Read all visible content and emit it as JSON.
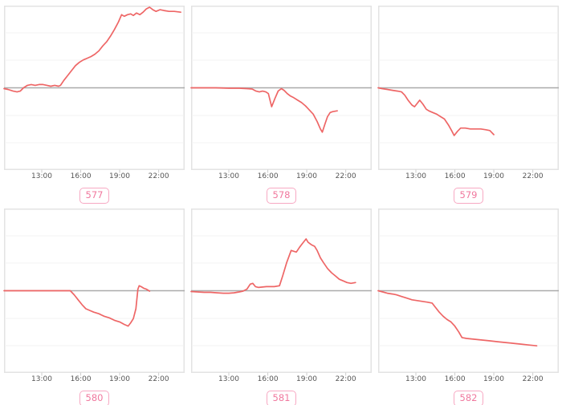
{
  "page": {
    "background": "#ffffff"
  },
  "colors": {
    "line": "#ee6666",
    "zero_line": "#aaaaaa",
    "gridline": "#f3f3f3",
    "panel_border": "#e3e3e3",
    "tick_text": "#555555",
    "badge_text": "#f0789e",
    "badge_border": "#f7a9c3"
  },
  "chart_data": {
    "type": "line",
    "layout": "small-multiples 2 rows x 3 columns",
    "legend": "none",
    "grid": "faint horizontal gridlines, gray zero baseline at mid-height",
    "x_axis": {
      "ticks": [
        "13:00",
        "16:00",
        "19:00",
        "22:00"
      ],
      "tick_hours": [
        13,
        16,
        19,
        22
      ],
      "domain_hours": [
        10.1,
        24.0
      ]
    },
    "y_axis": {
      "domain": [
        -100,
        100
      ],
      "zero_line": true,
      "tick_labels_visible": false,
      "note": "no y tick labels shown; values are relative to the zero baseline, 100 = panel top"
    },
    "charts": [
      {
        "badge": "577",
        "points": [
          [
            10.1,
            -1
          ],
          [
            10.4,
            -2
          ],
          [
            10.8,
            -4
          ],
          [
            11.1,
            -5
          ],
          [
            11.35,
            -4
          ],
          [
            11.6,
            0
          ],
          [
            11.9,
            3
          ],
          [
            12.2,
            4
          ],
          [
            12.5,
            3
          ],
          [
            12.8,
            4
          ],
          [
            13.1,
            4
          ],
          [
            13.4,
            3
          ],
          [
            13.7,
            2
          ],
          [
            14.0,
            3
          ],
          [
            14.3,
            2
          ],
          [
            14.45,
            3
          ],
          [
            14.7,
            9
          ],
          [
            15.0,
            15
          ],
          [
            15.3,
            21
          ],
          [
            15.6,
            27
          ],
          [
            15.9,
            31
          ],
          [
            16.2,
            34
          ],
          [
            16.5,
            36
          ],
          [
            16.8,
            38
          ],
          [
            17.1,
            41
          ],
          [
            17.4,
            45
          ],
          [
            17.7,
            51
          ],
          [
            18.0,
            56
          ],
          [
            18.3,
            63
          ],
          [
            18.6,
            71
          ],
          [
            18.9,
            80
          ],
          [
            19.15,
            89
          ],
          [
            19.35,
            87
          ],
          [
            19.6,
            89
          ],
          [
            19.85,
            90
          ],
          [
            20.05,
            88
          ],
          [
            20.3,
            91
          ],
          [
            20.55,
            89
          ],
          [
            20.8,
            92
          ],
          [
            21.05,
            96
          ],
          [
            21.3,
            98
          ],
          [
            21.55,
            95
          ],
          [
            21.8,
            93
          ],
          [
            22.1,
            95
          ],
          [
            22.4,
            94
          ],
          [
            22.8,
            93
          ],
          [
            23.2,
            93
          ],
          [
            23.7,
            92
          ]
        ]
      },
      {
        "badge": "578",
        "points": [
          [
            10.1,
            0
          ],
          [
            11.0,
            0
          ],
          [
            12.0,
            0
          ],
          [
            13.0,
            -0.5
          ],
          [
            13.8,
            -0.5
          ],
          [
            14.4,
            -1
          ],
          [
            14.8,
            -1.5
          ],
          [
            15.1,
            -4
          ],
          [
            15.35,
            -5
          ],
          [
            15.6,
            -4
          ],
          [
            15.85,
            -5
          ],
          [
            16.05,
            -7
          ],
          [
            16.3,
            -23
          ],
          [
            16.55,
            -13
          ],
          [
            16.8,
            -4
          ],
          [
            17.05,
            -1
          ],
          [
            17.25,
            -3
          ],
          [
            17.5,
            -7
          ],
          [
            17.75,
            -10
          ],
          [
            18.0,
            -12
          ],
          [
            18.3,
            -15
          ],
          [
            18.6,
            -18
          ],
          [
            18.9,
            -22
          ],
          [
            19.2,
            -27
          ],
          [
            19.5,
            -32
          ],
          [
            19.8,
            -41
          ],
          [
            20.05,
            -50
          ],
          [
            20.2,
            -54
          ],
          [
            20.4,
            -44
          ],
          [
            20.6,
            -35
          ],
          [
            20.8,
            -30
          ],
          [
            21.0,
            -29
          ],
          [
            21.35,
            -28
          ]
        ]
      },
      {
        "badge": "579",
        "points": [
          [
            10.1,
            0
          ],
          [
            10.4,
            -1
          ],
          [
            10.8,
            -2
          ],
          [
            11.2,
            -3
          ],
          [
            11.6,
            -4
          ],
          [
            11.9,
            -5
          ],
          [
            12.15,
            -9
          ],
          [
            12.4,
            -15
          ],
          [
            12.7,
            -21
          ],
          [
            12.9,
            -23
          ],
          [
            13.1,
            -19
          ],
          [
            13.3,
            -15
          ],
          [
            13.55,
            -20
          ],
          [
            13.8,
            -26
          ],
          [
            14.0,
            -28
          ],
          [
            14.3,
            -30
          ],
          [
            14.6,
            -32
          ],
          [
            14.9,
            -35
          ],
          [
            15.2,
            -38
          ],
          [
            15.5,
            -45
          ],
          [
            15.75,
            -52
          ],
          [
            15.95,
            -58
          ],
          [
            16.2,
            -53
          ],
          [
            16.45,
            -49
          ],
          [
            16.8,
            -49
          ],
          [
            17.2,
            -50
          ],
          [
            17.6,
            -50
          ],
          [
            18.0,
            -50
          ],
          [
            18.4,
            -51
          ],
          [
            18.7,
            -52
          ],
          [
            19.0,
            -57
          ]
        ]
      },
      {
        "badge": "580",
        "points": [
          [
            10.1,
            0
          ],
          [
            11.0,
            0
          ],
          [
            12.0,
            0
          ],
          [
            13.0,
            0
          ],
          [
            14.0,
            0
          ],
          [
            14.8,
            0
          ],
          [
            15.2,
            0
          ],
          [
            15.5,
            -5
          ],
          [
            15.8,
            -11
          ],
          [
            16.1,
            -17
          ],
          [
            16.4,
            -22
          ],
          [
            16.7,
            -24
          ],
          [
            17.0,
            -26
          ],
          [
            17.4,
            -28
          ],
          [
            17.8,
            -31
          ],
          [
            18.2,
            -33
          ],
          [
            18.6,
            -36
          ],
          [
            19.0,
            -38
          ],
          [
            19.35,
            -41
          ],
          [
            19.65,
            -43
          ],
          [
            19.85,
            -39
          ],
          [
            20.05,
            -34
          ],
          [
            20.25,
            -22
          ],
          [
            20.4,
            2
          ],
          [
            20.5,
            6
          ],
          [
            20.65,
            5
          ],
          [
            20.85,
            3
          ],
          [
            21.05,
            2
          ],
          [
            21.3,
            -0.5
          ]
        ]
      },
      {
        "badge": "581",
        "points": [
          [
            10.1,
            -1
          ],
          [
            10.6,
            -1.5
          ],
          [
            11.1,
            -2
          ],
          [
            11.6,
            -2
          ],
          [
            12.1,
            -2.5
          ],
          [
            12.6,
            -3
          ],
          [
            13.0,
            -3
          ],
          [
            13.4,
            -2.5
          ],
          [
            13.8,
            -1.5
          ],
          [
            14.1,
            -0.5
          ],
          [
            14.4,
            2
          ],
          [
            14.65,
            8
          ],
          [
            14.85,
            9
          ],
          [
            15.05,
            5
          ],
          [
            15.3,
            4
          ],
          [
            15.6,
            4.5
          ],
          [
            15.9,
            5
          ],
          [
            16.2,
            5
          ],
          [
            16.5,
            5
          ],
          [
            16.9,
            6
          ],
          [
            17.15,
            18
          ],
          [
            17.45,
            34
          ],
          [
            17.8,
            49
          ],
          [
            18.0,
            48
          ],
          [
            18.2,
            47
          ],
          [
            18.45,
            53
          ],
          [
            18.7,
            58
          ],
          [
            18.95,
            63
          ],
          [
            19.1,
            59
          ],
          [
            19.35,
            56
          ],
          [
            19.6,
            54
          ],
          [
            19.8,
            49
          ],
          [
            20.05,
            40
          ],
          [
            20.3,
            34
          ],
          [
            20.6,
            27
          ],
          [
            20.9,
            22
          ],
          [
            21.2,
            18
          ],
          [
            21.5,
            14
          ],
          [
            21.8,
            12
          ],
          [
            22.1,
            10
          ],
          [
            22.4,
            9
          ],
          [
            22.75,
            10
          ]
        ]
      },
      {
        "badge": "582",
        "points": [
          [
            10.1,
            0
          ],
          [
            10.45,
            -1.5
          ],
          [
            10.8,
            -3
          ],
          [
            11.2,
            -4
          ],
          [
            11.5,
            -5
          ],
          [
            11.9,
            -7
          ],
          [
            12.3,
            -9
          ],
          [
            12.7,
            -11
          ],
          [
            13.1,
            -12
          ],
          [
            13.5,
            -13
          ],
          [
            13.9,
            -14
          ],
          [
            14.25,
            -15
          ],
          [
            14.5,
            -20
          ],
          [
            14.8,
            -26
          ],
          [
            15.1,
            -31
          ],
          [
            15.4,
            -35
          ],
          [
            15.7,
            -38
          ],
          [
            16.0,
            -43
          ],
          [
            16.3,
            -50
          ],
          [
            16.55,
            -57
          ],
          [
            16.9,
            -58
          ],
          [
            17.5,
            -59
          ],
          [
            18.1,
            -60
          ],
          [
            18.7,
            -61
          ],
          [
            19.3,
            -62
          ],
          [
            19.9,
            -63
          ],
          [
            20.5,
            -64
          ],
          [
            21.1,
            -65
          ],
          [
            21.7,
            -66
          ],
          [
            22.3,
            -67
          ]
        ]
      }
    ]
  }
}
